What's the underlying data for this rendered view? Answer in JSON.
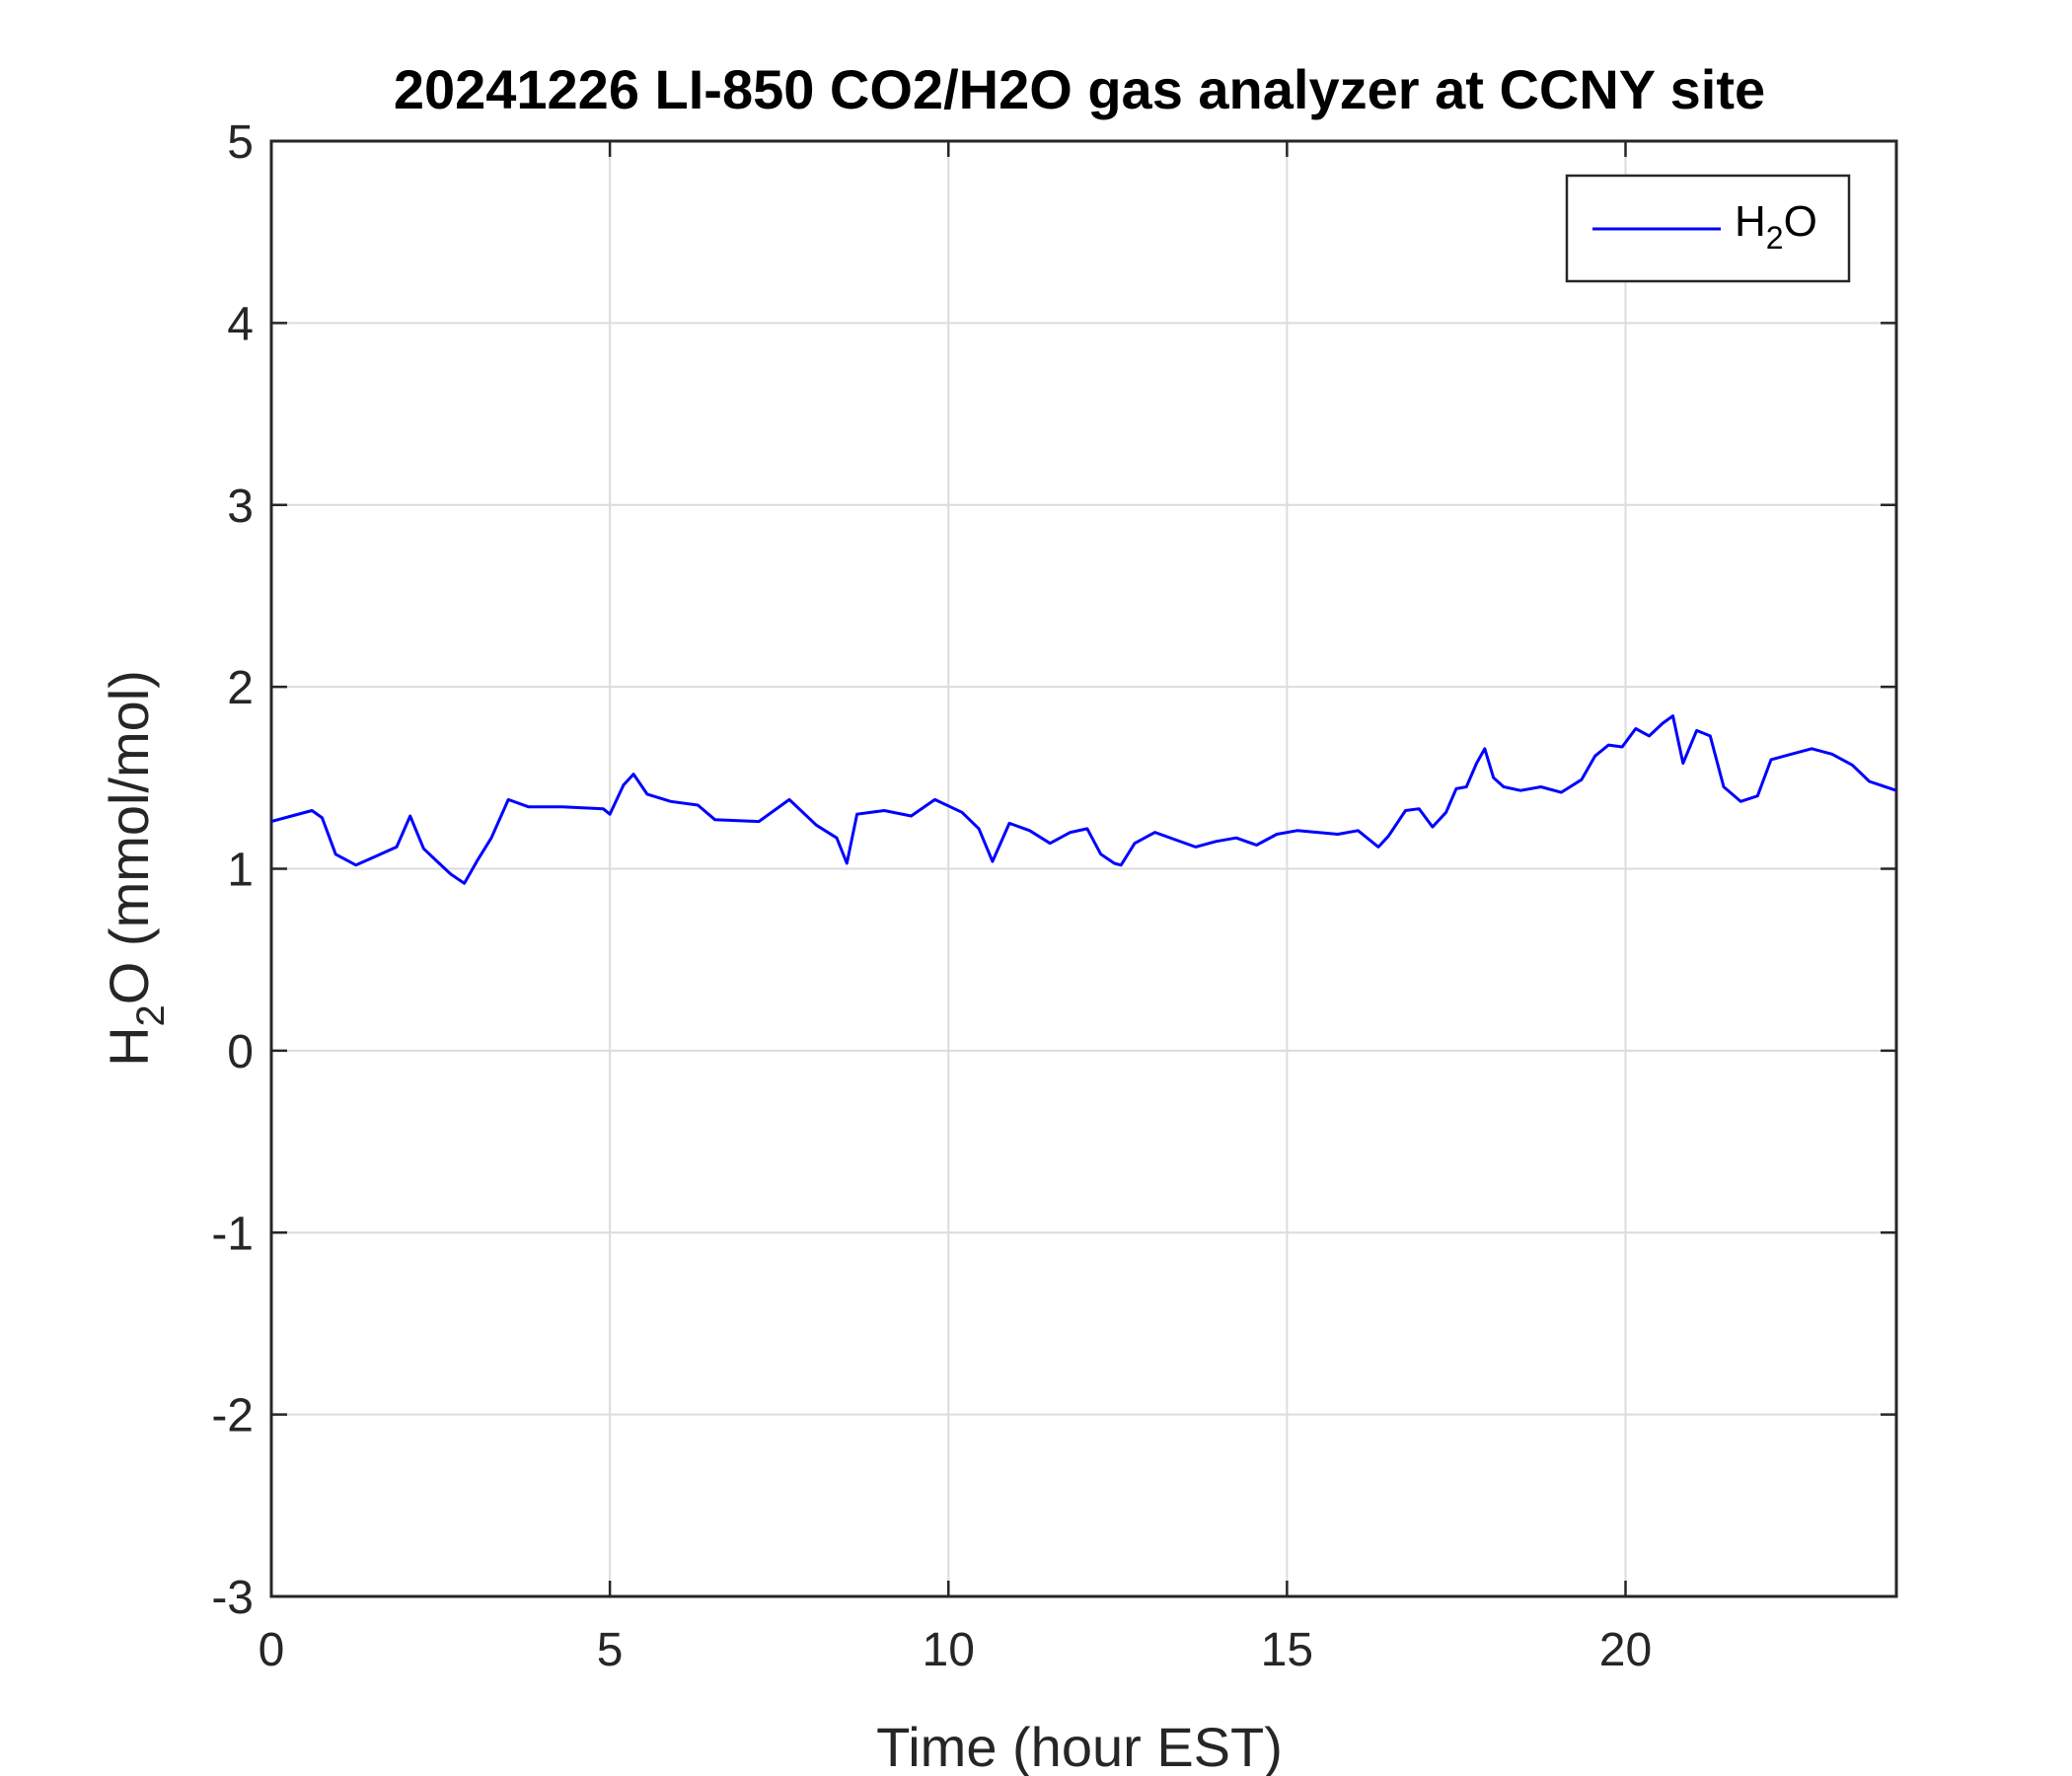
{
  "chart_data": {
    "type": "line",
    "title": "20241226 LI-850 CO2/H2O gas analyzer at CCNY site",
    "xlabel": "Time (hour EST)",
    "ylabel": {
      "prefix": "H",
      "sub": "2",
      "suffix": "O (mmol/mol)"
    },
    "xlim": [
      0,
      24
    ],
    "ylim": [
      -3,
      5
    ],
    "xticks": [
      0,
      5,
      10,
      15,
      20
    ],
    "yticks": [
      -3,
      -2,
      -1,
      0,
      1,
      2,
      3,
      4,
      5
    ],
    "grid": true,
    "legend_position": "top-right",
    "series": [
      {
        "legend": {
          "prefix": "H",
          "sub": "2",
          "suffix": "O"
        },
        "color": "#0000ff",
        "x": [
          0,
          0.3,
          0.6,
          0.75,
          0.95,
          1.25,
          1.55,
          1.85,
          2.05,
          2.25,
          2.45,
          2.65,
          2.85,
          3.05,
          3.25,
          3.5,
          3.8,
          4.3,
          4.9,
          5.0,
          5.2,
          5.35,
          5.55,
          5.9,
          6.3,
          6.55,
          7.2,
          7.65,
          8.05,
          8.35,
          8.5,
          8.65,
          9.05,
          9.45,
          9.8,
          10.2,
          10.45,
          10.65,
          10.9,
          11.2,
          11.5,
          11.8,
          12.05,
          12.25,
          12.45,
          12.55,
          12.75,
          13.05,
          13.35,
          13.65,
          13.95,
          14.25,
          14.55,
          14.85,
          15.15,
          15.45,
          15.75,
          16.05,
          16.35,
          16.5,
          16.75,
          16.95,
          17.15,
          17.35,
          17.5,
          17.65,
          17.8,
          17.92,
          18.05,
          18.2,
          18.45,
          18.75,
          19.05,
          19.35,
          19.55,
          19.75,
          19.95,
          20.15,
          20.35,
          20.55,
          20.7,
          20.85,
          21.05,
          21.25,
          21.45,
          21.7,
          21.95,
          22.15,
          22.45,
          22.75,
          23.05,
          23.35,
          23.6,
          24.0
        ],
        "y": [
          1.26,
          1.29,
          1.32,
          1.28,
          1.08,
          1.02,
          1.07,
          1.12,
          1.29,
          1.11,
          1.04,
          0.97,
          0.92,
          1.05,
          1.17,
          1.38,
          1.34,
          1.34,
          1.33,
          1.3,
          1.46,
          1.52,
          1.41,
          1.37,
          1.35,
          1.27,
          1.26,
          1.38,
          1.24,
          1.17,
          1.03,
          1.3,
          1.32,
          1.29,
          1.38,
          1.31,
          1.22,
          1.04,
          1.25,
          1.21,
          1.14,
          1.2,
          1.22,
          1.08,
          1.03,
          1.02,
          1.14,
          1.2,
          1.16,
          1.12,
          1.15,
          1.17,
          1.13,
          1.19,
          1.21,
          1.2,
          1.19,
          1.21,
          1.12,
          1.18,
          1.32,
          1.33,
          1.23,
          1.31,
          1.44,
          1.45,
          1.58,
          1.66,
          1.5,
          1.45,
          1.43,
          1.45,
          1.42,
          1.49,
          1.62,
          1.68,
          1.67,
          1.77,
          1.73,
          1.8,
          1.84,
          1.58,
          1.76,
          1.73,
          1.45,
          1.37,
          1.4,
          1.6,
          1.63,
          1.66,
          1.63,
          1.57,
          1.48,
          1.43
        ]
      }
    ]
  }
}
